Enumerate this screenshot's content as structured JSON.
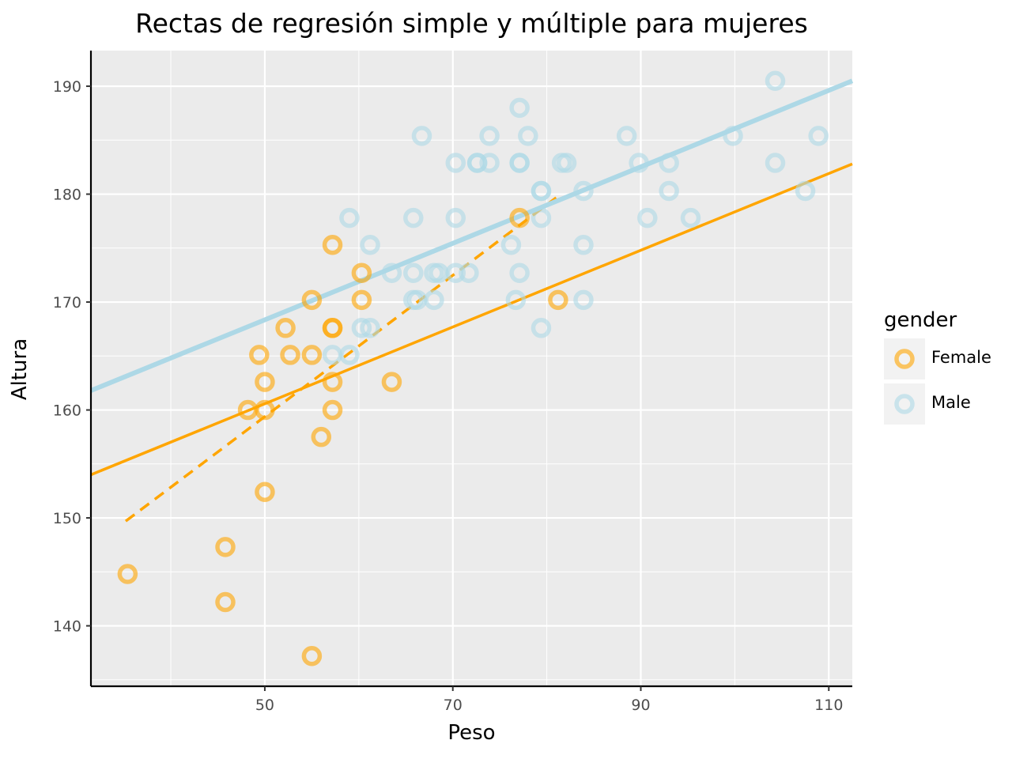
{
  "chart_data": {
    "type": "scatter",
    "title": "Rectas de regresión simple y múltiple para mujeres",
    "xlabel": "Peso",
    "ylabel": "Altura",
    "xlim": [
      31.5,
      112.5
    ],
    "ylim": [
      134.4,
      193.3
    ],
    "x_ticks": [
      50,
      70,
      90,
      110
    ],
    "y_ticks": [
      140,
      150,
      160,
      170,
      180,
      190
    ],
    "grid": true,
    "legend": {
      "title": "gender",
      "position": "right"
    },
    "series": [
      {
        "name": "Female",
        "color": "#FFA500",
        "points": [
          [
            35.4,
            144.8
          ],
          [
            45.8,
            147.3
          ],
          [
            45.8,
            142.2
          ],
          [
            48.2,
            160.0
          ],
          [
            49.4,
            165.1
          ],
          [
            50.0,
            162.6
          ],
          [
            50.0,
            160.0
          ],
          [
            50.0,
            152.4
          ],
          [
            52.2,
            167.6
          ],
          [
            52.7,
            165.1
          ],
          [
            55.0,
            170.2
          ],
          [
            55.0,
            165.1
          ],
          [
            55.0,
            137.2
          ],
          [
            56.0,
            157.5
          ],
          [
            57.2,
            175.3
          ],
          [
            57.2,
            167.6
          ],
          [
            57.2,
            167.6
          ],
          [
            57.2,
            162.6
          ],
          [
            57.2,
            160.0
          ],
          [
            60.3,
            172.7
          ],
          [
            60.3,
            170.2
          ],
          [
            63.5,
            162.6
          ],
          [
            77.1,
            177.8
          ],
          [
            81.2,
            170.2
          ]
        ]
      },
      {
        "name": "Male",
        "color": "#ADD8E6",
        "points": [
          [
            57.2,
            165.1
          ],
          [
            59.0,
            177.8
          ],
          [
            59.0,
            165.1
          ],
          [
            60.3,
            167.6
          ],
          [
            61.2,
            175.3
          ],
          [
            61.2,
            167.6
          ],
          [
            63.5,
            172.7
          ],
          [
            65.8,
            177.8
          ],
          [
            65.8,
            172.7
          ],
          [
            65.8,
            170.2
          ],
          [
            66.2,
            170.2
          ],
          [
            66.7,
            185.4
          ],
          [
            68.0,
            172.7
          ],
          [
            68.0,
            170.2
          ],
          [
            68.5,
            172.7
          ],
          [
            70.3,
            182.9
          ],
          [
            70.3,
            177.8
          ],
          [
            70.3,
            172.7
          ],
          [
            71.7,
            172.7
          ],
          [
            72.6,
            182.9
          ],
          [
            72.6,
            182.9
          ],
          [
            73.9,
            185.4
          ],
          [
            73.9,
            182.9
          ],
          [
            76.2,
            175.3
          ],
          [
            76.7,
            170.2
          ],
          [
            77.1,
            188.0
          ],
          [
            77.1,
            182.9
          ],
          [
            77.1,
            182.9
          ],
          [
            77.1,
            172.7
          ],
          [
            78.0,
            185.4
          ],
          [
            79.4,
            180.3
          ],
          [
            79.4,
            180.3
          ],
          [
            79.4,
            177.8
          ],
          [
            79.4,
            167.6
          ],
          [
            81.6,
            182.9
          ],
          [
            82.1,
            182.9
          ],
          [
            83.9,
            180.3
          ],
          [
            83.9,
            175.3
          ],
          [
            83.9,
            170.2
          ],
          [
            88.5,
            185.4
          ],
          [
            89.8,
            182.9
          ],
          [
            90.7,
            177.8
          ],
          [
            93.0,
            182.9
          ],
          [
            93.0,
            180.3
          ],
          [
            95.3,
            177.8
          ],
          [
            99.8,
            185.4
          ],
          [
            104.3,
            190.5
          ],
          [
            104.3,
            182.9
          ],
          [
            107.5,
            180.3
          ],
          [
            108.9,
            185.4
          ]
        ]
      }
    ],
    "lines": [
      {
        "name": "Female",
        "color": "#FFA500",
        "style": "solid",
        "x": [
          31.5,
          112.5
        ],
        "y": [
          154.0,
          182.8
        ]
      },
      {
        "name": "Female",
        "color": "#FFA500",
        "style": "dashed",
        "x": [
          35.2,
          81.5
        ],
        "y": [
          149.7,
          180.0
        ]
      },
      {
        "name": "Male",
        "color": "#ADD8E6",
        "style": "solid",
        "x": [
          31.5,
          112.5
        ],
        "y": [
          161.8,
          190.5
        ]
      }
    ]
  }
}
